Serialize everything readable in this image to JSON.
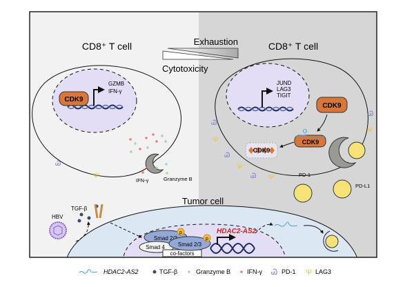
{
  "titles": {
    "left_cell": "CD8⁺ T cell",
    "right_cell": "CD8⁺ T cell",
    "tumor_cell": "Tumor cell"
  },
  "gradient": {
    "top_label": "Exhaustion",
    "bottom_label": "Cytotoxicity"
  },
  "left_nucleus": {
    "protein": "CDK9",
    "genes": [
      "GZMB",
      "IFN-γ"
    ]
  },
  "right_nucleus": {
    "genes": [
      "JUND",
      "LAG3",
      "TIGIT"
    ]
  },
  "right_cell": {
    "cdk9_free": "CDK9",
    "cdk9_bound": "CDK9",
    "cdk9_condensate": "CDK9",
    "pd1_label": "PD-1",
    "pdl1_label": "PD-L1"
  },
  "secretion": {
    "ifn_label": "IFN-γ",
    "granzyme_label": "Granzyme B"
  },
  "tumor": {
    "hbv_label": "HBV",
    "tgfb_label": "TGF-β",
    "smad23_a": "Smad 2/3",
    "smad23_b": "Smad 2/3",
    "smad4": "Smad 4",
    "cofactors": "co-factors",
    "phospho": "p",
    "lncrna": "HDAC2-AS2"
  },
  "legend": [
    {
      "icon": "lncrna-icon",
      "label": "HDAC2-AS2",
      "color": "#4a9fd8"
    },
    {
      "icon": "tgfb-dot-icon",
      "label": "TGF-β",
      "color": "#3b4a6b"
    },
    {
      "icon": "granzyme-dot-icon",
      "label": "Granzyme B",
      "color": "#a8d8a8"
    },
    {
      "icon": "ifn-dot-icon",
      "label": "IFN-γ",
      "color": "#e88080"
    },
    {
      "icon": "pd1-icon",
      "label": "PD-1",
      "color": "#7b88c8"
    },
    {
      "icon": "lag3-icon",
      "label": "LAG3",
      "color": "#f0c040"
    }
  ],
  "colors": {
    "left_bg": "#f2f2f2",
    "right_bg": "#d6d6d6",
    "nucleus": "#e3def5",
    "cdk9": "#d9773a",
    "tumor": "#dbe8f3",
    "lncrna_red": "#d62020",
    "dna": "#1c2a6a"
  }
}
